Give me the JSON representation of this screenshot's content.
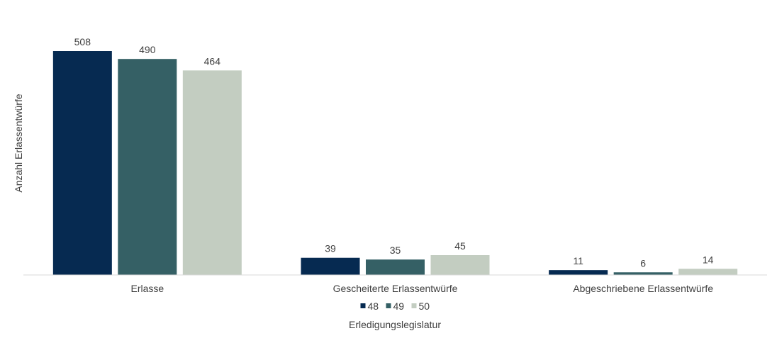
{
  "chart_data": {
    "type": "bar",
    "title": "",
    "xlabel": "Erledigungslegislatur",
    "ylabel": "Anzahl Erlassentwürfe",
    "categories": [
      "Erlasse",
      "Gescheiterte Erlassentwürfe",
      "Abgeschriebene Erlassentwürfe"
    ],
    "series": [
      {
        "name": "48",
        "color": "#062a51",
        "values": [
          508,
          39,
          11
        ]
      },
      {
        "name": "49",
        "color": "#356065",
        "values": [
          490,
          35,
          6
        ]
      },
      {
        "name": "50",
        "color": "#c3cdc1",
        "values": [
          464,
          45,
          14
        ]
      }
    ],
    "ylim": [
      0,
      508
    ],
    "grid": false,
    "legend_position": "bottom"
  }
}
